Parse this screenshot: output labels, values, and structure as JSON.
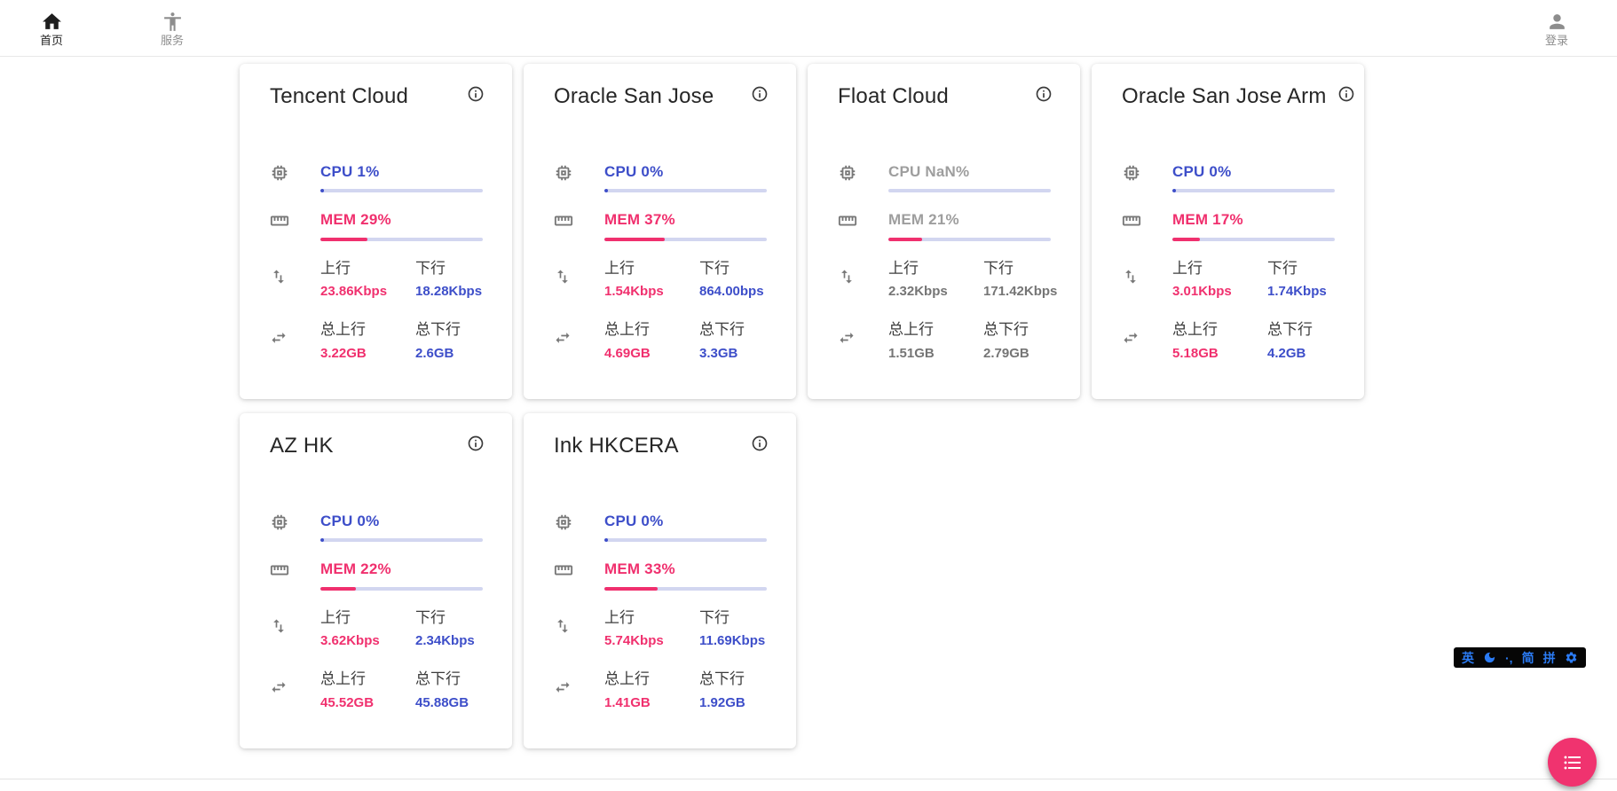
{
  "nav": {
    "home": {
      "label": "首页"
    },
    "services": {
      "label": "服务"
    },
    "login": {
      "label": "登录"
    }
  },
  "labels": {
    "up": "上行",
    "down": "下行",
    "total_up": "总上行",
    "total_down": "总下行"
  },
  "cards": [
    {
      "name": "Tencent Cloud",
      "cpu_text": "CPU 1%",
      "cpu_pct": 1,
      "mem_text": "MEM 29%",
      "mem_pct": 29,
      "up": "23.86Kbps",
      "down": "18.28Kbps",
      "total_up": "3.22GB",
      "total_down": "2.6GB",
      "dimmed": false
    },
    {
      "name": "Oracle San Jose",
      "cpu_text": "CPU 0%",
      "cpu_pct": 0,
      "mem_text": "MEM 37%",
      "mem_pct": 37,
      "up": "1.54Kbps",
      "down": "864.00bps",
      "total_up": "4.69GB",
      "total_down": "3.3GB",
      "dimmed": false
    },
    {
      "name": "Float Cloud",
      "cpu_text": "CPU NaN%",
      "cpu_pct": null,
      "mem_text": "MEM 21%",
      "mem_pct": 21,
      "up": "2.32Kbps",
      "down": "171.42Kbps",
      "total_up": "1.51GB",
      "total_down": "2.79GB",
      "dimmed": true
    },
    {
      "name": "Oracle San Jose Arm",
      "cpu_text": "CPU 0%",
      "cpu_pct": 0,
      "mem_text": "MEM 17%",
      "mem_pct": 17,
      "up": "3.01Kbps",
      "down": "1.74Kbps",
      "total_up": "5.18GB",
      "total_down": "4.2GB",
      "dimmed": false
    },
    {
      "name": "AZ HK",
      "cpu_text": "CPU 0%",
      "cpu_pct": 0,
      "mem_text": "MEM 22%",
      "mem_pct": 22,
      "up": "3.62Kbps",
      "down": "2.34Kbps",
      "total_up": "45.52GB",
      "total_down": "45.88GB",
      "dimmed": false
    },
    {
      "name": "Ink HKCERA",
      "cpu_text": "CPU 0%",
      "cpu_pct": 0,
      "mem_text": "MEM 33%",
      "mem_pct": 33,
      "up": "5.74Kbps",
      "down": "11.69Kbps",
      "total_up": "1.41GB",
      "total_down": "1.92GB",
      "dimmed": false
    }
  ],
  "ime": {
    "lang": "英",
    "punct": "·,",
    "simplified": "简",
    "pinyin": "拼"
  },
  "colors": {
    "blue": "#3d4ec9",
    "pink": "#f0306e",
    "track": "#d2d6f0",
    "ime_blue": "#2b7bf3",
    "fab_pink": "#f0336f"
  }
}
